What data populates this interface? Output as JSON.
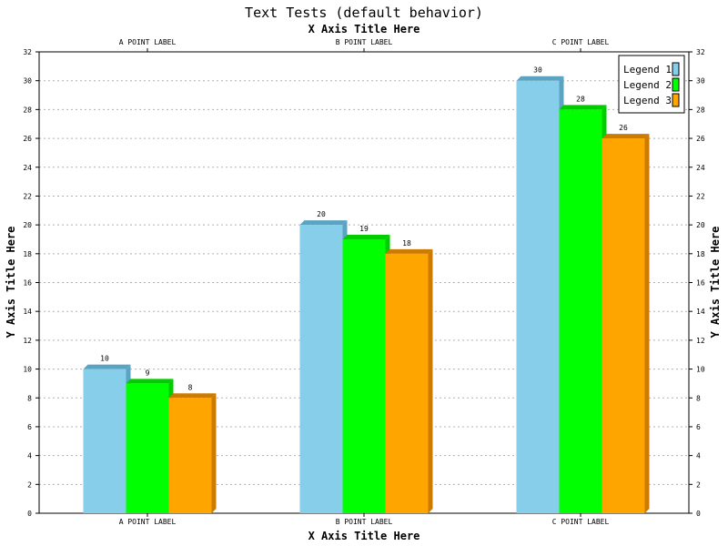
{
  "chart_data": {
    "type": "bar",
    "title": "Text Tests (default behavior)",
    "xlabel_top": "X Axis Title Here",
    "xlabel": "X Axis Title Here",
    "ylabel": "Y Axis Title Here",
    "ylabel_right": "Y Axis Title Here",
    "categories": [
      "A POINT LABEL",
      "B POINT LABEL",
      "C POINT LABEL"
    ],
    "series": [
      {
        "name": "Legend 1",
        "values": [
          10,
          20,
          30
        ],
        "color": "#87CEEB",
        "shade": "#5BA3C0"
      },
      {
        "name": "Legend 2",
        "values": [
          9,
          19,
          28
        ],
        "color": "#00FF00",
        "shade": "#00CC00"
      },
      {
        "name": "Legend 3",
        "values": [
          8,
          18,
          26
        ],
        "color": "#FFA500",
        "shade": "#CC7A00"
      }
    ],
    "ylim": [
      0,
      32
    ],
    "ytick_step": 2,
    "grid": true,
    "legend_position": "top-right",
    "data_labels": true,
    "three_d": true
  }
}
